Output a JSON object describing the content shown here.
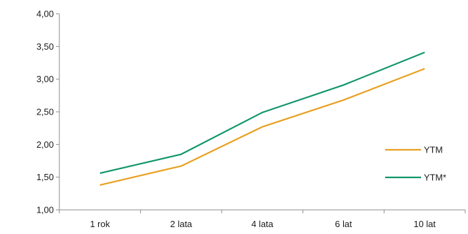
{
  "chart_data": {
    "type": "line",
    "title": "",
    "xlabel": "",
    "ylabel": "",
    "categories": [
      "1 rok",
      "2 lata",
      "4 lata",
      "6 lat",
      "10 lat"
    ],
    "ylim": [
      1.0,
      4.0
    ],
    "yticks": [
      "1,00",
      "1,50",
      "2,00",
      "2,50",
      "3,00",
      "3,50",
      "4,00"
    ],
    "grid": false,
    "legend_position": "right",
    "series": [
      {
        "name": "YTM",
        "color": "#E8A020",
        "values": [
          1.38,
          1.67,
          2.27,
          2.68,
          3.16
        ]
      },
      {
        "name": "YTM*",
        "color": "#10956C",
        "values": [
          1.56,
          1.85,
          2.49,
          2.91,
          3.41
        ]
      }
    ]
  }
}
